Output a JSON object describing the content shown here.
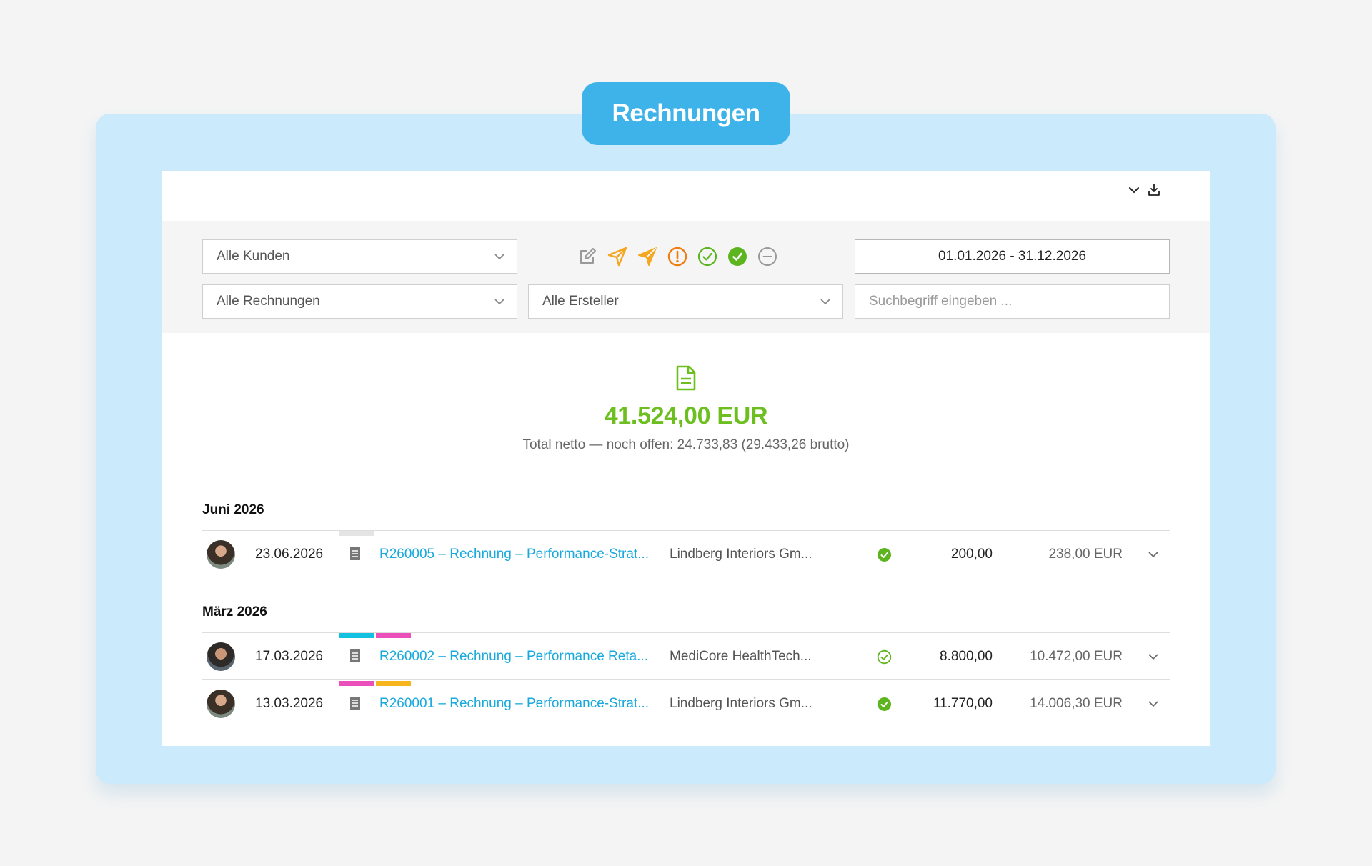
{
  "header": {
    "title": "Rechnungen"
  },
  "toolbar": {
    "expand_icon": "chevron-down-icon",
    "download_icon": "download-icon"
  },
  "filters": {
    "customer_select": "Alle Kunden",
    "invoice_select": "Alle Rechnungen",
    "creator_select": "Alle Ersteller",
    "date_range": "01.01.2026 - 31.12.2026",
    "search_placeholder": "Suchbegriff eingeben ...",
    "status_icons": [
      "edit-icon",
      "send-icon",
      "sent-filled-icon",
      "overdue-icon",
      "paid-outline-icon",
      "paid-filled-icon",
      "cancelled-icon"
    ]
  },
  "summary": {
    "total": "41.524,00 EUR",
    "subtitle": "Total netto — noch offen: 24.733,83 (29.433,26 brutto)"
  },
  "colors": {
    "accent": "#3db3ea",
    "green": "#6cbf1f",
    "link": "#19a9dc",
    "tag_cyan": "#12c0e0",
    "tag_pink": "#ea4fba",
    "tag_orange": "#f7b51d",
    "tag_grey": "#e4e4e4"
  },
  "groups": [
    {
      "month": "Juni 2026",
      "rows": [
        {
          "date": "23.06.2026",
          "title": "R260005 – Rechnung – Performance-Strat...",
          "client": "Lindberg Interiors Gm...",
          "status": "paid-filled",
          "net": "200,00",
          "gross": "238,00 EUR",
          "tags": [
            "grey"
          ]
        }
      ]
    },
    {
      "month": "März 2026",
      "rows": [
        {
          "date": "17.03.2026",
          "title": "R260002 – Rechnung – Performance Reta...",
          "client": "MediCore HealthTech...",
          "status": "paid-outline",
          "net": "8.800,00",
          "gross": "10.472,00 EUR",
          "tags": [
            "cyan",
            "pink"
          ]
        },
        {
          "date": "13.03.2026",
          "title": "R260001 – Rechnung – Performance-Strat...",
          "client": "Lindberg Interiors Gm...",
          "status": "paid-filled",
          "net": "11.770,00",
          "gross": "14.006,30 EUR",
          "tags": [
            "pink",
            "orange"
          ]
        }
      ]
    }
  ]
}
